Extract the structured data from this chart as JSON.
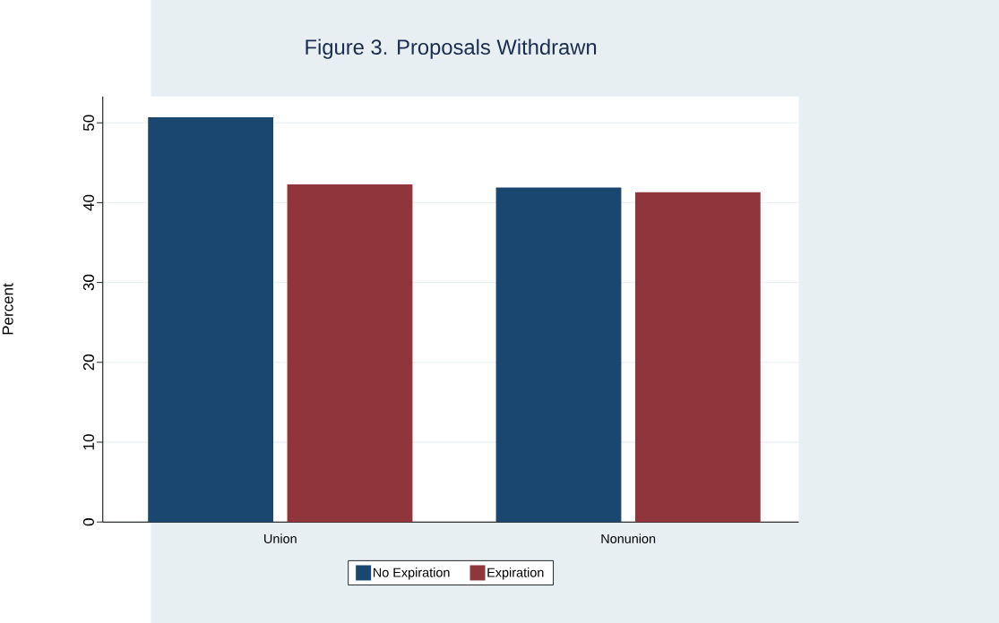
{
  "chart_data": {
    "type": "bar",
    "title": "Figure 3. Proposals Withdrawn",
    "ylabel": "Percent",
    "categories": [
      "Union",
      "Nonunion"
    ],
    "series": [
      {
        "name": "No Expiration",
        "color": "#1a476f",
        "values": [
          50.7,
          41.9
        ]
      },
      {
        "name": "Expiration",
        "color": "#90353b",
        "values": [
          42.3,
          41.3
        ]
      }
    ],
    "ylim": [
      0,
      53.3
    ],
    "yticks": [
      0,
      10,
      20,
      30,
      40,
      50
    ],
    "grid": "y",
    "legend": "bottom"
  }
}
